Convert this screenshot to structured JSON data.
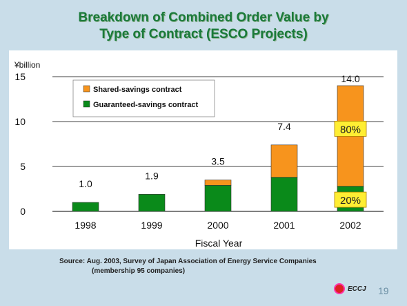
{
  "title_line1": "Breakdown of Combined Order Value by",
  "title_line2": "Type of Contract (ESCO Projects)",
  "source_line1": "Source:  Aug. 2003, Survey of Japan Association of Energy Service Companies",
  "source_line2": "(membership 95 companies)",
  "logo_text": "ECCJ",
  "page_number": "19",
  "colors": {
    "shared": "#f7941d",
    "guaranteed": "#0a8a1a",
    "callout": "#ffee33"
  },
  "chart_data": {
    "type": "bar",
    "stacked": true,
    "title": "",
    "xlabel": "Fiscal Year",
    "ylabel": "¥billion",
    "ylim": [
      0,
      15
    ],
    "yticks": [
      "0",
      "5",
      "10",
      "15"
    ],
    "categories": [
      "1998",
      "1999",
      "2000",
      "2001",
      "2002"
    ],
    "series": [
      {
        "name": "Guaranteed-savings contract",
        "values": [
          1.0,
          1.9,
          2.9,
          3.8,
          2.8
        ]
      },
      {
        "name": "Shared-savings contract",
        "values": [
          0,
          0,
          0.6,
          3.6,
          11.2
        ]
      }
    ],
    "totals": [
      "1.0",
      "1.9",
      "3.5",
      "7.4",
      "14.0"
    ],
    "legend": [
      "Shared-savings contract",
      "Guaranteed-savings contract"
    ],
    "legend_position": "top-left",
    "grid": true,
    "annotations": [
      "80%",
      "20%"
    ]
  }
}
